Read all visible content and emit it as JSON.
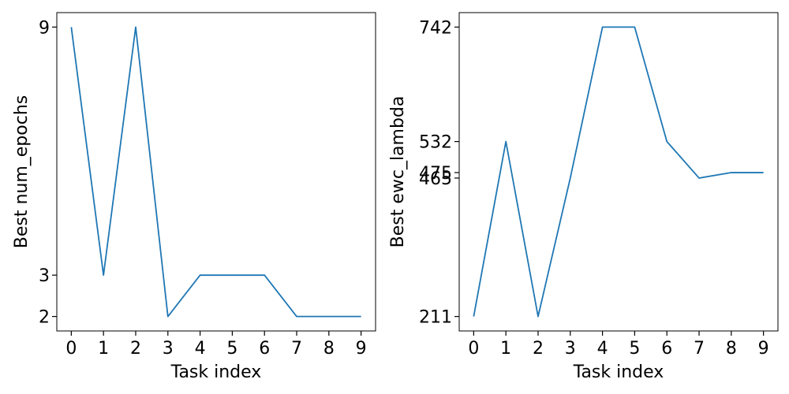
{
  "chart_data": [
    {
      "type": "line",
      "xlabel": "Task index",
      "ylabel": "Best num_epochs",
      "x": [
        0,
        1,
        2,
        3,
        4,
        5,
        6,
        7,
        8,
        9
      ],
      "xticks": [
        "0",
        "1",
        "2",
        "3",
        "4",
        "5",
        "6",
        "7",
        "8",
        "9"
      ],
      "yticks": [
        2,
        3,
        9
      ],
      "ylim": [
        1.65,
        9.35
      ],
      "xlim": [
        -0.45,
        9.45
      ],
      "series": [
        {
          "values": [
            9,
            3,
            9,
            2,
            3,
            3,
            3,
            2,
            2,
            2
          ],
          "color": "#1f77b4"
        }
      ]
    },
    {
      "type": "line",
      "xlabel": "Task index",
      "ylabel": "Best ewc_lambda",
      "x": [
        0,
        1,
        2,
        3,
        4,
        5,
        6,
        7,
        8,
        9
      ],
      "xticks": [
        "0",
        "1",
        "2",
        "3",
        "4",
        "5",
        "6",
        "7",
        "8",
        "9"
      ],
      "yticks": [
        211,
        465,
        475,
        532,
        742
      ],
      "ylim": [
        184.45,
        768.55
      ],
      "xlim": [
        -0.45,
        9.45
      ],
      "series": [
        {
          "values": [
            211,
            532,
            211,
            465,
            742,
            742,
            532,
            465,
            475,
            475
          ],
          "color": "#1f77b4"
        }
      ]
    }
  ]
}
